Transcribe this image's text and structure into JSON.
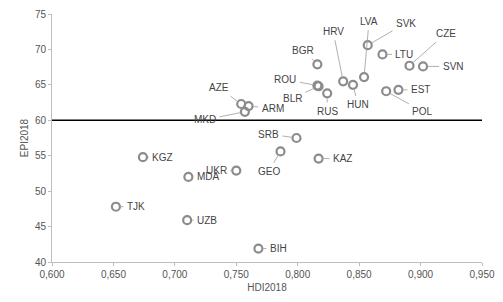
{
  "chart_data": {
    "type": "scatter",
    "x_label": "HDI2018",
    "y_label": "EPI2018",
    "marker": "open-circle",
    "color": "#8c8c8c",
    "labels": [
      "KGZ",
      "TJK",
      "MDA",
      "UZB",
      "UKR",
      "BIH",
      "GEO",
      "SRB",
      "KAZ",
      "MKD",
      "AZE",
      "ARM",
      "BGR",
      "ROU",
      "BLR",
      "RUS",
      "HRV",
      "HUN",
      "LVA",
      "SVK",
      "LTU",
      "POL",
      "EST",
      "CZE",
      "SVN"
    ],
    "x": [
      0.674,
      0.652,
      0.711,
      0.71,
      0.75,
      0.768,
      0.786,
      0.799,
      0.817,
      0.757,
      0.754,
      0.76,
      0.816,
      0.816,
      0.817,
      0.824,
      0.837,
      0.845,
      0.854,
      0.857,
      0.869,
      0.872,
      0.882,
      0.891,
      0.902
    ],
    "values": [
      54.8,
      47.8,
      52.0,
      45.9,
      52.9,
      41.9,
      55.6,
      57.5,
      54.6,
      61.2,
      62.3,
      62.0,
      67.9,
      64.9,
      64.8,
      63.8,
      65.5,
      65.0,
      66.1,
      70.6,
      69.3,
      64.1,
      64.3,
      67.7,
      67.6
    ],
    "threshold": 60,
    "xlim": [
      0.6,
      0.95
    ],
    "xticks": [
      {
        "value": 0.6,
        "label": "0,600"
      },
      {
        "value": 0.65,
        "label": "0,650"
      },
      {
        "value": 0.7,
        "label": "0,700"
      },
      {
        "value": 0.75,
        "label": "0,750"
      },
      {
        "value": 0.8,
        "label": "0,800"
      },
      {
        "value": 0.85,
        "label": "0,850"
      },
      {
        "value": 0.9,
        "label": "0,900"
      },
      {
        "value": 0.95,
        "label": "0,950"
      }
    ],
    "ylim": [
      40,
      75
    ],
    "yticks": [
      40,
      45,
      50,
      55,
      60,
      65,
      70,
      75
    ],
    "grid": false
  }
}
